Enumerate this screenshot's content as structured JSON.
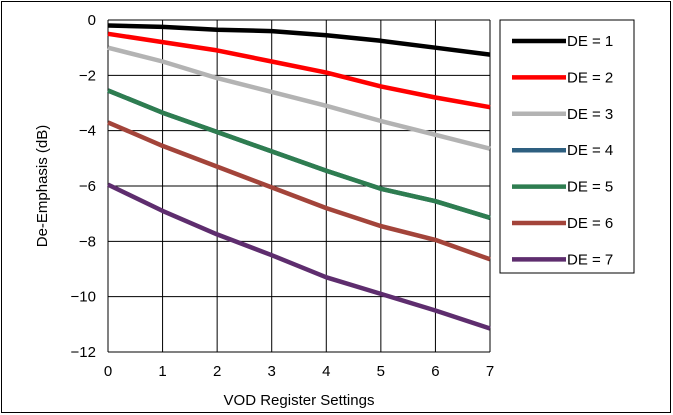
{
  "chart_data": {
    "type": "line",
    "xlabel": "VOD Register Settings",
    "ylabel": "De-Emphasis (dB)",
    "xlim": [
      0,
      7
    ],
    "ylim": [
      -12,
      0
    ],
    "xticks": [
      "0",
      "1",
      "2",
      "3",
      "4",
      "5",
      "6",
      "7"
    ],
    "yticks": [
      "0",
      "−2",
      "−4",
      "−6",
      "−8",
      "−10",
      "−12"
    ],
    "grid": true,
    "legend_position": "right",
    "x": [
      0,
      1,
      2,
      3,
      4,
      5,
      6,
      7
    ],
    "series": [
      {
        "name": "DE = 1",
        "color": "#000000",
        "values": [
          -0.2,
          -0.25,
          -0.35,
          -0.4,
          -0.55,
          -0.75,
          -1.0,
          -1.25
        ]
      },
      {
        "name": "DE = 2",
        "color": "#ff0000",
        "values": [
          -0.5,
          -0.8,
          -1.1,
          -1.5,
          -1.9,
          -2.4,
          -2.8,
          -3.15
        ]
      },
      {
        "name": "DE = 3",
        "color": "#b3b3b3",
        "values": [
          -1.0,
          -1.5,
          -2.1,
          -2.6,
          -3.1,
          -3.65,
          -4.15,
          -4.65
        ]
      },
      {
        "name": "DE = 4",
        "color": "#2e5f80",
        "values": [
          -2.55,
          -3.35,
          -4.05,
          -4.75,
          -5.45,
          -6.1,
          -6.55,
          -7.15
        ]
      },
      {
        "name": "DE = 5",
        "color": "#2e7d50",
        "values": [
          -2.55,
          -3.35,
          -4.05,
          -4.75,
          -5.45,
          -6.1,
          -6.55,
          -7.15
        ]
      },
      {
        "name": "DE = 6",
        "color": "#a3443a",
        "values": [
          -3.7,
          -4.55,
          -5.3,
          -6.05,
          -6.8,
          -7.45,
          -7.95,
          -8.65
        ]
      },
      {
        "name": "DE = 7",
        "color": "#5e2d6e",
        "values": [
          -5.95,
          -6.9,
          -7.75,
          -8.5,
          -9.3,
          -9.9,
          -10.5,
          -11.15
        ]
      }
    ]
  }
}
